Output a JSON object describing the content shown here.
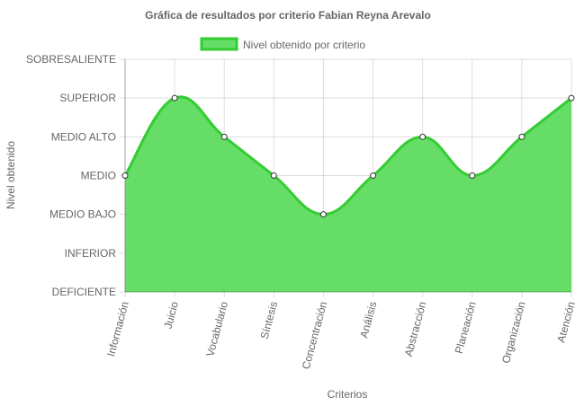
{
  "chart_data": {
    "type": "area",
    "title": "Gráfica de resultados por criterio Fabian Reyna Arevalo",
    "xlabel": "Criterios",
    "ylabel": "Nivel obtenido",
    "legend": {
      "position": "top",
      "label": "Nivel obtenido por criterio"
    },
    "y_levels": [
      "DEFICIENTE",
      "INFERIOR",
      "MEDIO BAJO",
      "MEDIO",
      "MEDIO ALTO",
      "SUPERIOR",
      "SOBRESALIENTE"
    ],
    "ylim": [
      0,
      6
    ],
    "grid": true,
    "categories": [
      "Información",
      "Juicio",
      "Vocabulario",
      "Síntesis",
      "Concentración",
      "Análisis",
      "Abstracción",
      "Planeación",
      "Organización",
      "Atención"
    ],
    "series": [
      {
        "name": "Nivel obtenido por criterio",
        "values": [
          3,
          5,
          4,
          3,
          2,
          3,
          4,
          3,
          4,
          5
        ],
        "value_labels": [
          "MEDIO",
          "SUPERIOR",
          "MEDIO ALTO",
          "MEDIO",
          "MEDIO BAJO",
          "MEDIO",
          "MEDIO ALTO",
          "MEDIO",
          "MEDIO ALTO",
          "SUPERIOR"
        ]
      }
    ],
    "colors": {
      "fill": "#66dd66",
      "line": "#33cc33",
      "point_fill": "#ffffff",
      "point_stroke": "#333333"
    }
  }
}
